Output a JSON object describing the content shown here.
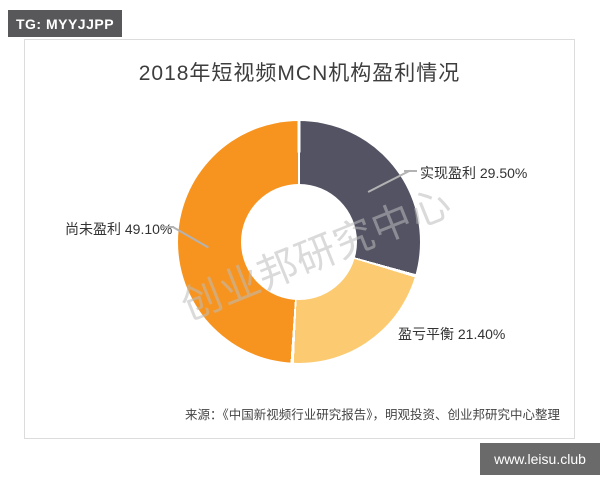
{
  "page": {
    "tg_badge": "TG: MYYJJPP",
    "site_badge": "www.leisu.club",
    "watermark": "创业邦研究中心",
    "source": "来源：《中国新视频行业研究报告》，明观投资、创业邦研究中心整理"
  },
  "colors": {
    "segment_profit": "#535364",
    "segment_breakeven": "#fcca70",
    "segment_loss": "#f79420",
    "tg_badge_bg": "#58585a",
    "site_badge_bg": "#6a6a6a",
    "frame_border": "#dcdcdc",
    "leader_line": "#b3b3b3",
    "watermark_gray": "#bcbcbc"
  },
  "chart_data": {
    "type": "pie",
    "subtype": "donut",
    "title": "2018年短视频MCN机构盈利情况",
    "start_angle_deg": 0,
    "direction": "clockwise",
    "inner_radius_ratio": 0.48,
    "gap_between_slices_deg": 1.6,
    "legend_position": "callout-labels",
    "segments": [
      {
        "label": "实现盈利",
        "value": 29.5,
        "display": "实现盈利 29.50%",
        "color": "#535364"
      },
      {
        "label": "盈亏平衡",
        "value": 21.4,
        "display": "盈亏平衡 21.40%",
        "color": "#fcca70"
      },
      {
        "label": "尚未盈利",
        "value": 49.1,
        "display": "尚未盈利 49.10%",
        "color": "#f79420"
      }
    ]
  }
}
